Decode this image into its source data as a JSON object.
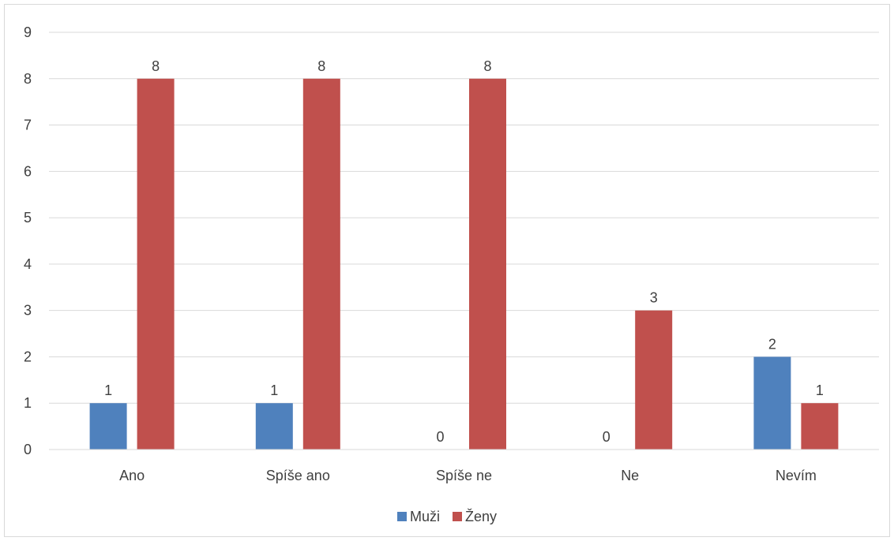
{
  "chart_data": {
    "type": "bar",
    "categories": [
      "Ano",
      "Spíše ano",
      "Spíše ne",
      "Ne",
      "Nevím"
    ],
    "series": [
      {
        "name": "Muži",
        "values": [
          1,
          1,
          0,
          0,
          2
        ],
        "color": "#4f81bd"
      },
      {
        "name": "Ženy",
        "values": [
          8,
          8,
          8,
          3,
          1
        ],
        "color": "#c0504d"
      }
    ],
    "ylim": [
      0,
      9
    ],
    "yticks": [
      "0",
      "1",
      "2",
      "3",
      "4",
      "5",
      "6",
      "7",
      "8",
      "9"
    ],
    "grid": true,
    "legend_position": "bottom",
    "data_labels": true
  }
}
